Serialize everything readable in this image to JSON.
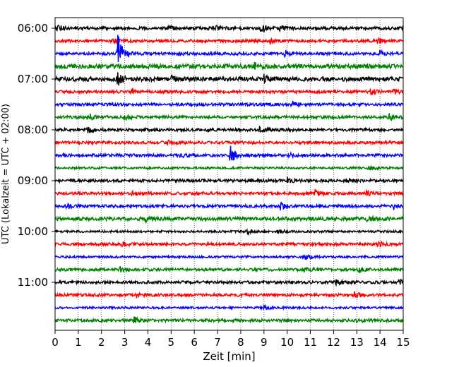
{
  "chart_data": {
    "type": "line",
    "title": "",
    "xlabel": "Zeit  [min]",
    "ylabel": "UTC (Lokalzeit = UTC + 02:00)",
    "xlim": [
      0,
      15
    ],
    "x_ticks": [
      0,
      1,
      2,
      3,
      4,
      5,
      6,
      7,
      8,
      9,
      10,
      11,
      12,
      13,
      14,
      15
    ],
    "y_tick_labels": [
      "06:00",
      "07:00",
      "08:00",
      "09:00",
      "10:00",
      "11:00"
    ],
    "grid": "vertical dotted at each minute",
    "colors": [
      "#000000",
      "#ff0000",
      "#0000ff",
      "#008000"
    ],
    "traces": [
      {
        "start": "06:00",
        "color": "#000000",
        "amplitude": 2,
        "events": [
          {
            "t": 0.1,
            "a": 6
          },
          {
            "t": 4.9,
            "a": 3
          },
          {
            "t": 6.8,
            "a": 5
          },
          {
            "t": 8.8,
            "a": 4
          },
          {
            "t": 9.0,
            "a": 4
          },
          {
            "t": 9.7,
            "a": 5
          }
        ]
      },
      {
        "start": "06:15",
        "color": "#ff0000",
        "amplitude": 2,
        "events": [
          {
            "t": 2.5,
            "a": 4
          },
          {
            "t": 9.2,
            "a": 5
          },
          {
            "t": 13.9,
            "a": 4
          }
        ]
      },
      {
        "start": "06:30",
        "color": "#0000ff",
        "amplitude": 2,
        "events": [
          {
            "t": 2.7,
            "a": 30
          },
          {
            "t": 5.3,
            "a": 3
          },
          {
            "t": 9.9,
            "a": 4
          },
          {
            "t": 14.0,
            "a": 4
          }
        ]
      },
      {
        "start": "06:45",
        "color": "#008000",
        "amplitude": 3,
        "events": [
          {
            "t": 8.6,
            "a": 5
          }
        ]
      },
      {
        "start": "07:00",
        "color": "#000000",
        "amplitude": 3,
        "events": [
          {
            "t": 2.7,
            "a": 8
          },
          {
            "t": 5.0,
            "a": 4
          },
          {
            "t": 9.0,
            "a": 6
          }
        ]
      },
      {
        "start": "07:15",
        "color": "#ff0000",
        "amplitude": 2,
        "events": [
          {
            "t": 3.3,
            "a": 5
          },
          {
            "t": 13.6,
            "a": 4
          },
          {
            "t": 14.6,
            "a": 4
          }
        ]
      },
      {
        "start": "07:30",
        "color": "#0000ff",
        "amplitude": 2,
        "events": [
          {
            "t": 10.2,
            "a": 4
          }
        ]
      },
      {
        "start": "07:45",
        "color": "#008000",
        "amplitude": 2,
        "events": [
          {
            "t": 1.5,
            "a": 4
          },
          {
            "t": 3.0,
            "a": 4
          },
          {
            "t": 14.4,
            "a": 4
          }
        ]
      },
      {
        "start": "08:00",
        "color": "#000000",
        "amplitude": 2,
        "events": [
          {
            "t": 1.4,
            "a": 4
          },
          {
            "t": 8.8,
            "a": 4
          }
        ]
      },
      {
        "start": "08:15",
        "color": "#ff0000",
        "amplitude": 2,
        "events": [
          {
            "t": 4.8,
            "a": 4
          }
        ]
      },
      {
        "start": "08:30",
        "color": "#0000ff",
        "amplitude": 2,
        "events": [
          {
            "t": 5.4,
            "a": 3
          },
          {
            "t": 7.55,
            "a": 14
          },
          {
            "t": 10.1,
            "a": 3
          }
        ]
      },
      {
        "start": "08:45",
        "color": "#008000",
        "amplitude": 1.5,
        "events": [
          {
            "t": 13.5,
            "a": 4
          }
        ]
      },
      {
        "start": "09:00",
        "color": "#000000",
        "amplitude": 2,
        "events": [
          {
            "t": 10.0,
            "a": 4
          },
          {
            "t": 12.5,
            "a": 3
          }
        ]
      },
      {
        "start": "09:15",
        "color": "#ff0000",
        "amplitude": 2,
        "events": [
          {
            "t": 3.3,
            "a": 3
          },
          {
            "t": 11.2,
            "a": 5
          },
          {
            "t": 13.4,
            "a": 3
          }
        ]
      },
      {
        "start": "09:30",
        "color": "#0000ff",
        "amplitude": 2,
        "events": [
          {
            "t": 0.5,
            "a": 4
          },
          {
            "t": 9.7,
            "a": 5
          },
          {
            "t": 14.6,
            "a": 4
          }
        ]
      },
      {
        "start": "09:45",
        "color": "#008000",
        "amplitude": 2.5,
        "events": [
          {
            "t": 3.9,
            "a": 4
          },
          {
            "t": 13.4,
            "a": 4
          }
        ]
      },
      {
        "start": "10:00",
        "color": "#000000",
        "amplitude": 1.5,
        "events": [
          {
            "t": 8.3,
            "a": 3
          },
          {
            "t": 9.6,
            "a": 3
          }
        ]
      },
      {
        "start": "10:15",
        "color": "#ff0000",
        "amplitude": 2,
        "events": [
          {
            "t": 2.9,
            "a": 4
          },
          {
            "t": 13.9,
            "a": 4
          }
        ]
      },
      {
        "start": "10:30",
        "color": "#0000ff",
        "amplitude": 1.5,
        "events": [
          {
            "t": 10.8,
            "a": 4
          }
        ]
      },
      {
        "start": "10:45",
        "color": "#008000",
        "amplitude": 2,
        "events": [
          {
            "t": 2.8,
            "a": 3
          },
          {
            "t": 10.7,
            "a": 3
          },
          {
            "t": 13.1,
            "a": 4
          }
        ]
      },
      {
        "start": "11:00",
        "color": "#000000",
        "amplitude": 2,
        "events": [
          {
            "t": 12.1,
            "a": 4
          },
          {
            "t": 14.8,
            "a": 4
          }
        ]
      },
      {
        "start": "11:15",
        "color": "#ff0000",
        "amplitude": 2,
        "events": [
          {
            "t": 3.5,
            "a": 4
          },
          {
            "t": 12.9,
            "a": 4
          }
        ]
      },
      {
        "start": "11:30",
        "color": "#0000ff",
        "amplitude": 1.5,
        "events": [
          {
            "t": 9.0,
            "a": 3
          }
        ]
      },
      {
        "start": "11:45",
        "color": "#008000",
        "amplitude": 2,
        "events": [
          {
            "t": 3.4,
            "a": 4
          },
          {
            "t": 13.0,
            "a": 3
          }
        ]
      }
    ]
  }
}
